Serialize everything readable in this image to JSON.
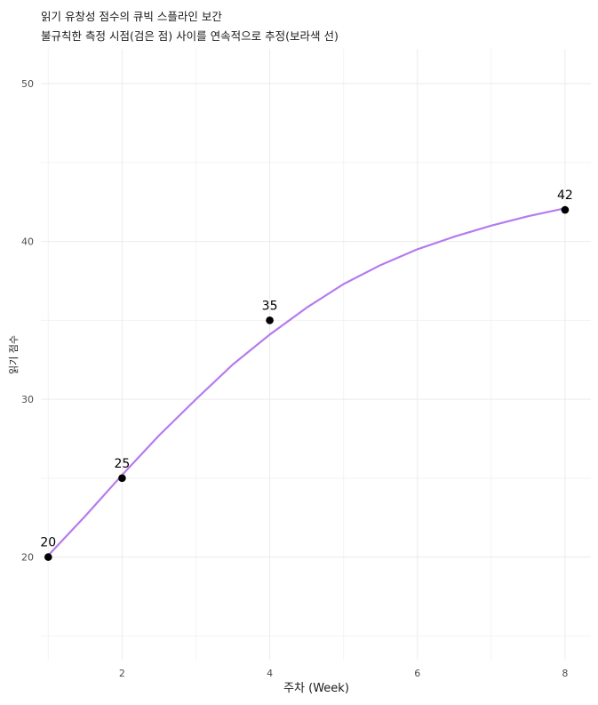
{
  "chart_data": {
    "type": "line",
    "title": "읽기 유창성 점수의 큐빅 스플라인 보간",
    "subtitle": "불규칙한 측정 시점(검은 점) 사이를 연속적으로 추정(보라색 선)",
    "xlabel": "주차 (Week)",
    "ylabel": "읽기 점수",
    "xlim": [
      0.9,
      8.35
    ],
    "ylim": [
      13.5,
      52.2
    ],
    "x_ticks": [
      2,
      4,
      6,
      8
    ],
    "x_minor_ticks": [
      1,
      3,
      5,
      7
    ],
    "y_ticks": [
      20,
      30,
      40,
      50
    ],
    "y_minor_ticks": [
      15,
      25,
      35,
      45
    ],
    "grid": true,
    "points": {
      "x": [
        1,
        2,
        4,
        8
      ],
      "y": [
        20,
        25,
        35,
        42
      ],
      "labels": [
        "20",
        "25",
        "35",
        "42"
      ],
      "color": "#000000"
    },
    "spline": {
      "x": [
        1,
        1.5,
        2,
        2.5,
        3,
        3.5,
        4,
        4.5,
        5,
        5.5,
        6,
        6.5,
        7,
        7.5,
        8
      ],
      "y": [
        20.1,
        22.6,
        25.2,
        27.7,
        30.0,
        32.2,
        34.1,
        35.8,
        37.3,
        38.5,
        39.5,
        40.3,
        41.0,
        41.6,
        42.1
      ],
      "color": "#b57bee"
    }
  }
}
